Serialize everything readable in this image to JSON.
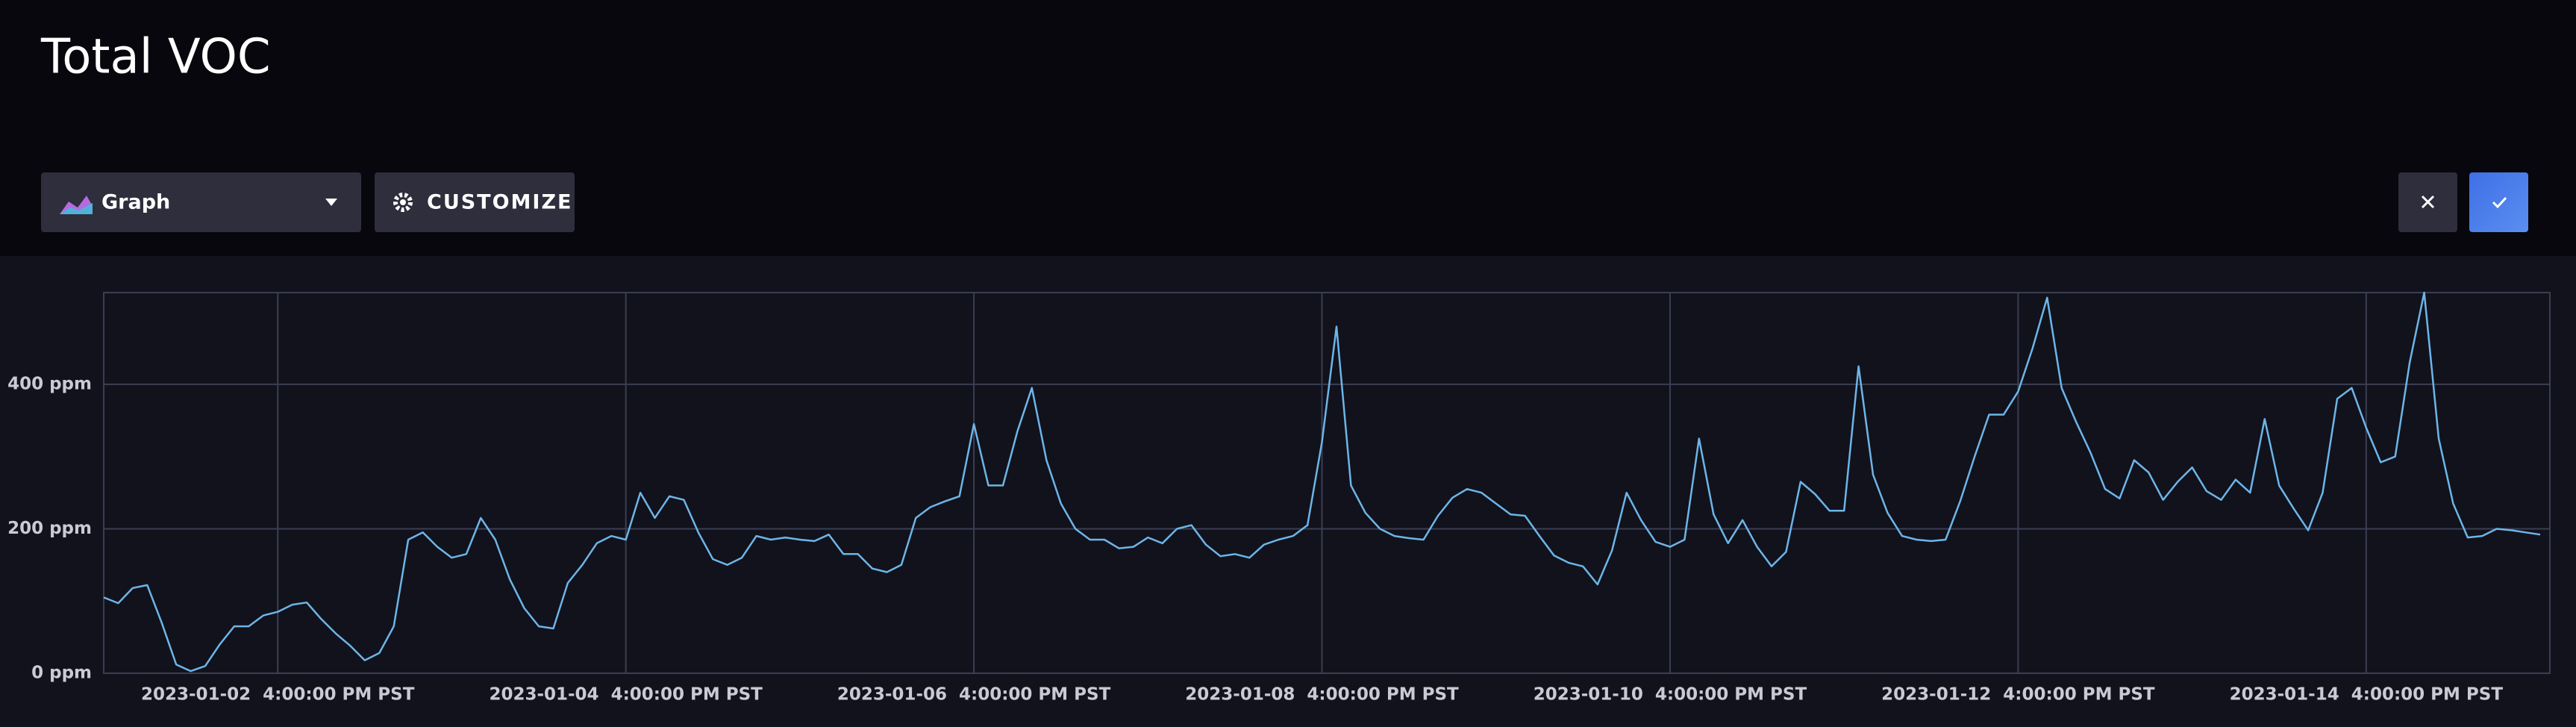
{
  "header": {
    "title": "Total VOC"
  },
  "toolbar": {
    "view": "Graph",
    "customize": "CUSTOMIZE"
  },
  "chart_data": {
    "type": "line",
    "color": "#6db5e8",
    "grid": true,
    "ylim": [
      0,
      527
    ],
    "yticks": [
      {
        "value": 0,
        "label": "0 ppm"
      },
      {
        "value": 200,
        "label": "200 ppm"
      },
      {
        "value": 400,
        "label": "400 ppm"
      }
    ],
    "xlim": [
      "2023-01-01 16:00",
      "2023-01-15 17:20"
    ],
    "xticks": [
      {
        "value": "2023-01-02 16:00",
        "label": "2023-01-02  4:00:00 PM PST"
      },
      {
        "value": "2023-01-04 16:00",
        "label": "2023-01-04  4:00:00 PM PST"
      },
      {
        "value": "2023-01-06 16:00",
        "label": "2023-01-06  4:00:00 PM PST"
      },
      {
        "value": "2023-01-08 16:00",
        "label": "2023-01-08  4:00:00 PM PST"
      },
      {
        "value": "2023-01-10 16:00",
        "label": "2023-01-10  4:00:00 PM PST"
      },
      {
        "value": "2023-01-12 16:00",
        "label": "2023-01-12  4:00:00 PM PST"
      },
      {
        "value": "2023-01-14 16:00",
        "label": "2023-01-14  4:00:00 PM PST"
      }
    ],
    "x": [
      "2023-01-01 16:00",
      "2023-01-01 18:00",
      "2023-01-01 20:00",
      "2023-01-01 22:00",
      "2023-01-02 00:00",
      "2023-01-02 02:00",
      "2023-01-02 04:00",
      "2023-01-02 06:00",
      "2023-01-02 08:00",
      "2023-01-02 10:00",
      "2023-01-02 12:00",
      "2023-01-02 14:00",
      "2023-01-02 16:00",
      "2023-01-02 18:00",
      "2023-01-02 20:00",
      "2023-01-02 22:00",
      "2023-01-03 00:00",
      "2023-01-03 02:00",
      "2023-01-03 04:00",
      "2023-01-03 06:00",
      "2023-01-03 08:00",
      "2023-01-03 10:00",
      "2023-01-03 12:00",
      "2023-01-03 14:00",
      "2023-01-03 16:00",
      "2023-01-03 18:00",
      "2023-01-03 20:00",
      "2023-01-03 22:00",
      "2023-01-04 00:00",
      "2023-01-04 02:00",
      "2023-01-04 04:00",
      "2023-01-04 06:00",
      "2023-01-04 08:00",
      "2023-01-04 10:00",
      "2023-01-04 12:00",
      "2023-01-04 14:00",
      "2023-01-04 16:00",
      "2023-01-04 18:00",
      "2023-01-04 20:00",
      "2023-01-04 22:00",
      "2023-01-05 00:00",
      "2023-01-05 02:00",
      "2023-01-05 04:00",
      "2023-01-05 06:00",
      "2023-01-05 08:00",
      "2023-01-05 10:00",
      "2023-01-05 12:00",
      "2023-01-05 14:00",
      "2023-01-05 16:00",
      "2023-01-05 18:00",
      "2023-01-05 20:00",
      "2023-01-05 22:00",
      "2023-01-06 00:00",
      "2023-01-06 02:00",
      "2023-01-06 04:00",
      "2023-01-06 06:00",
      "2023-01-06 08:00",
      "2023-01-06 10:00",
      "2023-01-06 12:00",
      "2023-01-06 14:00",
      "2023-01-06 16:00",
      "2023-01-06 18:00",
      "2023-01-06 20:00",
      "2023-01-06 22:00",
      "2023-01-07 00:00",
      "2023-01-07 02:00",
      "2023-01-07 04:00",
      "2023-01-07 06:00",
      "2023-01-07 08:00",
      "2023-01-07 10:00",
      "2023-01-07 12:00",
      "2023-01-07 14:00",
      "2023-01-07 16:00",
      "2023-01-07 18:00",
      "2023-01-07 20:00",
      "2023-01-07 22:00",
      "2023-01-08 00:00",
      "2023-01-08 02:00",
      "2023-01-08 04:00",
      "2023-01-08 06:00",
      "2023-01-08 08:00",
      "2023-01-08 10:00",
      "2023-01-08 12:00",
      "2023-01-08 14:00",
      "2023-01-08 16:00",
      "2023-01-08 18:00",
      "2023-01-08 20:00",
      "2023-01-08 22:00",
      "2023-01-09 00:00",
      "2023-01-09 02:00",
      "2023-01-09 04:00",
      "2023-01-09 06:00",
      "2023-01-09 08:00",
      "2023-01-09 10:00",
      "2023-01-09 12:00",
      "2023-01-09 14:00",
      "2023-01-09 16:00",
      "2023-01-09 18:00",
      "2023-01-09 20:00",
      "2023-01-09 22:00",
      "2023-01-10 00:00",
      "2023-01-10 02:00",
      "2023-01-10 04:00",
      "2023-01-10 06:00",
      "2023-01-10 08:00",
      "2023-01-10 10:00",
      "2023-01-10 12:00",
      "2023-01-10 14:00",
      "2023-01-10 16:00",
      "2023-01-10 18:00",
      "2023-01-10 20:00",
      "2023-01-10 22:00",
      "2023-01-11 00:00",
      "2023-01-11 02:00",
      "2023-01-11 04:00",
      "2023-01-11 06:00",
      "2023-01-11 08:00",
      "2023-01-11 10:00",
      "2023-01-11 12:00",
      "2023-01-11 14:00",
      "2023-01-11 16:00",
      "2023-01-11 18:00",
      "2023-01-11 20:00",
      "2023-01-11 22:00",
      "2023-01-12 00:00",
      "2023-01-12 02:00",
      "2023-01-12 04:00",
      "2023-01-12 06:00",
      "2023-01-12 08:00",
      "2023-01-12 10:00",
      "2023-01-12 12:00",
      "2023-01-12 14:00",
      "2023-01-12 16:00",
      "2023-01-12 18:00",
      "2023-01-12 20:00",
      "2023-01-12 22:00",
      "2023-01-13 00:00",
      "2023-01-13 02:00",
      "2023-01-13 04:00",
      "2023-01-13 06:00",
      "2023-01-13 08:00",
      "2023-01-13 10:00",
      "2023-01-13 12:00",
      "2023-01-13 14:00",
      "2023-01-13 16:00",
      "2023-01-13 18:00",
      "2023-01-13 20:00",
      "2023-01-13 22:00",
      "2023-01-14 00:00",
      "2023-01-14 02:00",
      "2023-01-14 04:00",
      "2023-01-14 06:00",
      "2023-01-14 08:00",
      "2023-01-14 10:00",
      "2023-01-14 12:00",
      "2023-01-14 14:00",
      "2023-01-14 16:00",
      "2023-01-14 18:00",
      "2023-01-14 20:00",
      "2023-01-14 22:00",
      "2023-01-15 00:00",
      "2023-01-15 02:00",
      "2023-01-15 04:00",
      "2023-01-15 06:00",
      "2023-01-15 08:00",
      "2023-01-15 10:00",
      "2023-01-15 12:00",
      "2023-01-15 14:00",
      "2023-01-15 16:00"
    ],
    "values": [
      105,
      97,
      118,
      122,
      70,
      12,
      3,
      10,
      40,
      65,
      65,
      80,
      85,
      95,
      98,
      75,
      55,
      38,
      18,
      28,
      65,
      185,
      195,
      175,
      160,
      165,
      215,
      185,
      130,
      90,
      65,
      62,
      125,
      150,
      180,
      190,
      185,
      250,
      215,
      245,
      240,
      195,
      158,
      150,
      160,
      190,
      185,
      188,
      185,
      183,
      192,
      165,
      165,
      145,
      140,
      150,
      215,
      230,
      238,
      245,
      345,
      260,
      260,
      335,
      395,
      295,
      235,
      200,
      185,
      185,
      173,
      175,
      188,
      180,
      200,
      205,
      178,
      162,
      165,
      160,
      178,
      185,
      190,
      205,
      320,
      480,
      260,
      222,
      200,
      190,
      187,
      185,
      218,
      243,
      255,
      250,
      235,
      220,
      218,
      190,
      163,
      153,
      148,
      123,
      170,
      250,
      212,
      182,
      175,
      185,
      325,
      220,
      180,
      212,
      175,
      148,
      168,
      265,
      248,
      225,
      225,
      425,
      275,
      222,
      190,
      185,
      183,
      185,
      238,
      300,
      358,
      358,
      390,
      450,
      520,
      395,
      348,
      305,
      255,
      242,
      295,
      278,
      240,
      265,
      285,
      252,
      240,
      268,
      250,
      352,
      260,
      228,
      198,
      250,
      380,
      395,
      340,
      292,
      300,
      430,
      527,
      325,
      235,
      188,
      190,
      200,
      198,
      195,
      192
    ]
  }
}
